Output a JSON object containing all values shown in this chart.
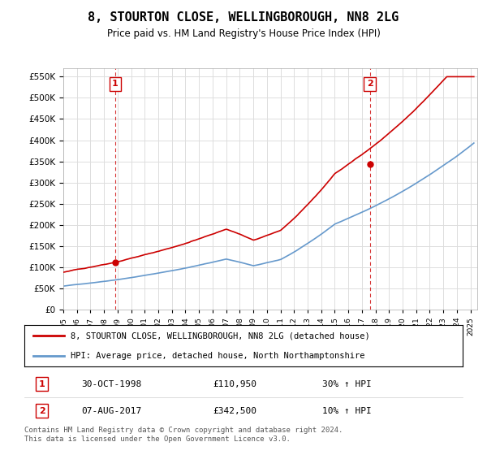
{
  "title": "8, STOURTON CLOSE, WELLINGBOROUGH, NN8 2LG",
  "subtitle": "Price paid vs. HM Land Registry's House Price Index (HPI)",
  "legend_line1": "8, STOURTON CLOSE, WELLINGBOROUGH, NN8 2LG (detached house)",
  "legend_line2": "HPI: Average price, detached house, North Northamptonshire",
  "transaction1_label": "1",
  "transaction1_date": "30-OCT-1998",
  "transaction1_price": "£110,950",
  "transaction1_hpi": "30% ↑ HPI",
  "transaction2_label": "2",
  "transaction2_date": "07-AUG-2017",
  "transaction2_price": "£342,500",
  "transaction2_hpi": "10% ↑ HPI",
  "footer": "Contains HM Land Registry data © Crown copyright and database right 2024.\nThis data is licensed under the Open Government Licence v3.0.",
  "hpi_color": "#6699cc",
  "price_color": "#cc0000",
  "marker1_year": 1998.83,
  "marker1_price": 110950,
  "marker2_year": 2017.58,
  "marker2_price": 342500,
  "vline1_year": 1998.83,
  "vline2_year": 2017.58,
  "ylim_min": 0,
  "ylim_max": 570000,
  "xlim_min": 1995,
  "xlim_max": 2025.5,
  "background_color": "#ffffff",
  "grid_color": "#dddddd"
}
